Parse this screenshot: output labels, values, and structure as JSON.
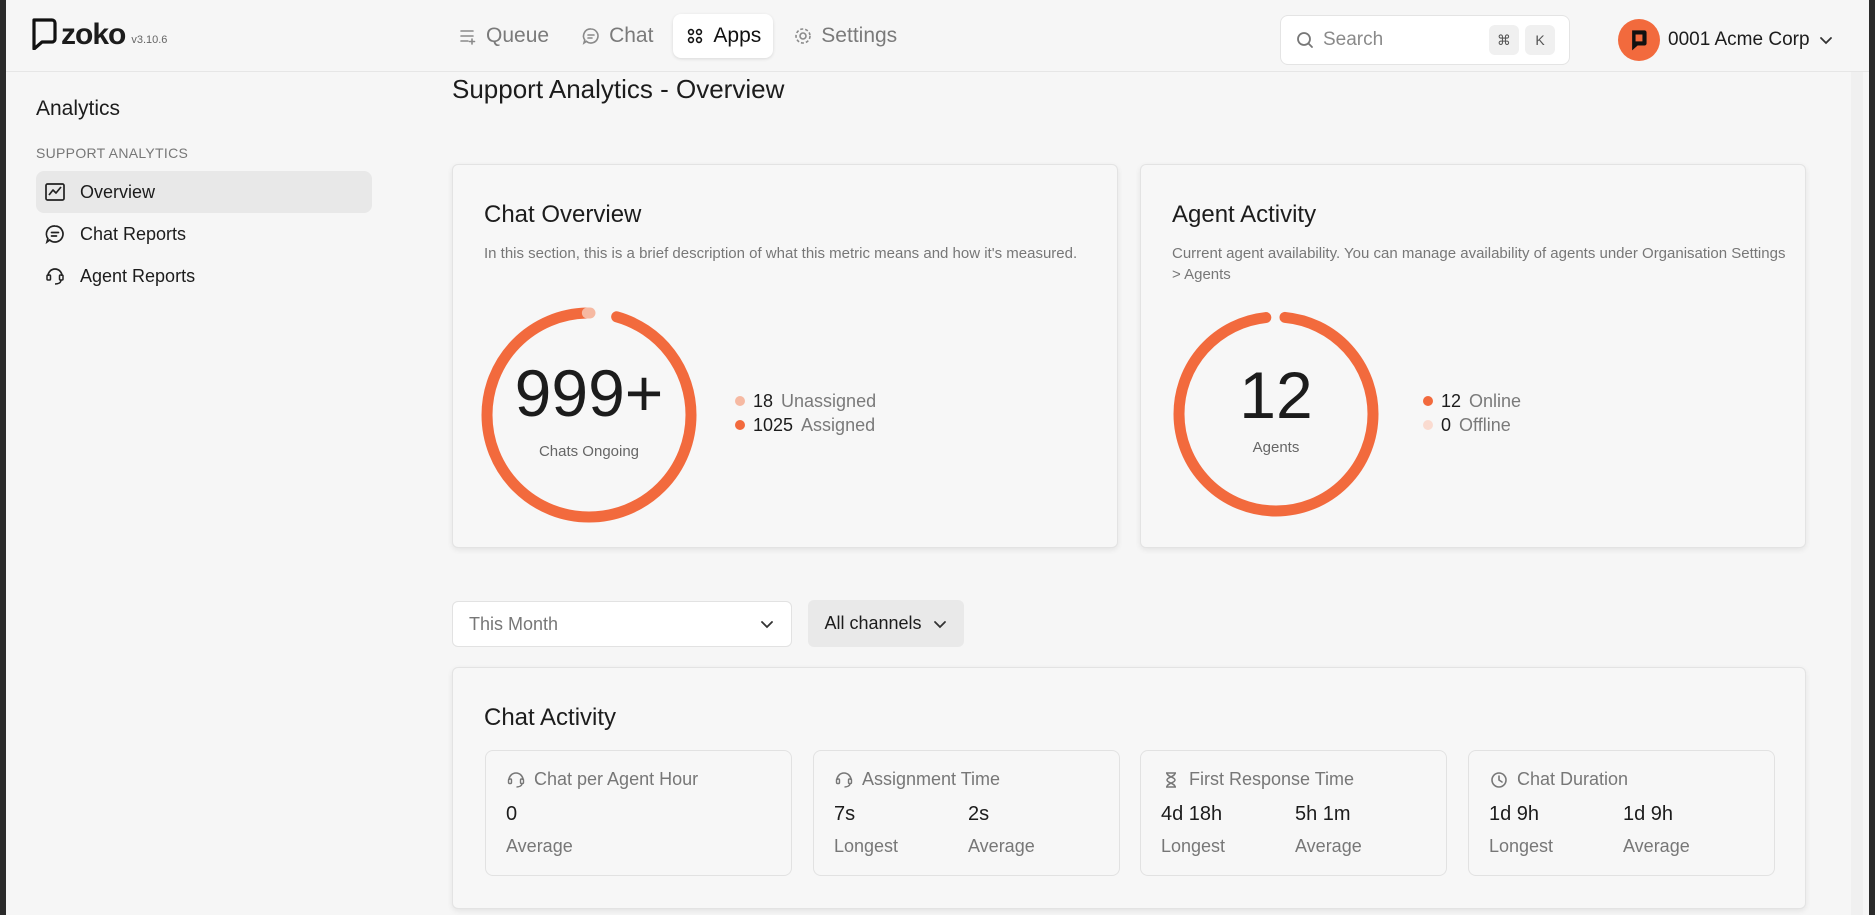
{
  "brand": {
    "name": "zoko",
    "version": "v3.10.6",
    "accent": "#f26a3d"
  },
  "nav": {
    "items": [
      {
        "label": "Queue",
        "icon": "queue-icon",
        "active": false
      },
      {
        "label": "Chat",
        "icon": "chat-icon",
        "active": false
      },
      {
        "label": "Apps",
        "icon": "apps-icon",
        "active": true
      },
      {
        "label": "Settings",
        "icon": "gear-icon",
        "active": false
      }
    ]
  },
  "search": {
    "placeholder": "Search",
    "shortcut_keys": [
      "⌘",
      "K"
    ]
  },
  "account": {
    "name": "0001 Acme Corp"
  },
  "sidebar": {
    "title": "Analytics",
    "section": "SUPPORT ANALYTICS",
    "items": [
      {
        "label": "Overview",
        "icon": "chart-line-icon",
        "active": true
      },
      {
        "label": "Chat Reports",
        "icon": "chat-report-icon",
        "active": false
      },
      {
        "label": "Agent Reports",
        "icon": "agent-icon",
        "active": false
      }
    ]
  },
  "page": {
    "title": "Support Analytics - Overview"
  },
  "chat_overview": {
    "title": "Chat Overview",
    "description": "In this section, this is a brief description of what this metric means and how it's measured.",
    "big_value": "999+",
    "big_label": "Chats Ongoing",
    "legend": [
      {
        "value": "18",
        "label": "Unassigned",
        "color": "#f6b9a2"
      },
      {
        "value": "1025",
        "label": "Assigned",
        "color": "#f26a3d"
      }
    ]
  },
  "agent_activity": {
    "title": "Agent Activity",
    "description": "Current agent availability. You can manage availability of agents under Organisation Settings > Agents",
    "big_value": "12",
    "big_label": "Agents",
    "legend": [
      {
        "value": "12",
        "label": "Online",
        "color": "#f26a3d"
      },
      {
        "value": "0",
        "label": "Offline",
        "color": "#fadbd0"
      }
    ]
  },
  "filters": {
    "period": "This Month",
    "channels": "All channels"
  },
  "chat_activity": {
    "title": "Chat Activity",
    "metrics": [
      {
        "title": "Chat per Agent Hour",
        "icon": "agent-hour-icon",
        "cols": [
          {
            "value": "0",
            "label": "Average"
          }
        ]
      },
      {
        "title": "Assignment Time",
        "icon": "assignment-icon",
        "cols": [
          {
            "value": "7s",
            "label": "Longest"
          },
          {
            "value": "2s",
            "label": "Average"
          }
        ]
      },
      {
        "title": "First Response Time",
        "icon": "hourglass-icon",
        "cols": [
          {
            "value": "4d 18h",
            "label": "Longest"
          },
          {
            "value": "5h 1m",
            "label": "Average"
          }
        ]
      },
      {
        "title": "Chat Duration",
        "icon": "clock-icon",
        "cols": [
          {
            "value": "1d 9h",
            "label": "Longest"
          },
          {
            "value": "1d 9h",
            "label": "Average"
          }
        ]
      }
    ]
  }
}
